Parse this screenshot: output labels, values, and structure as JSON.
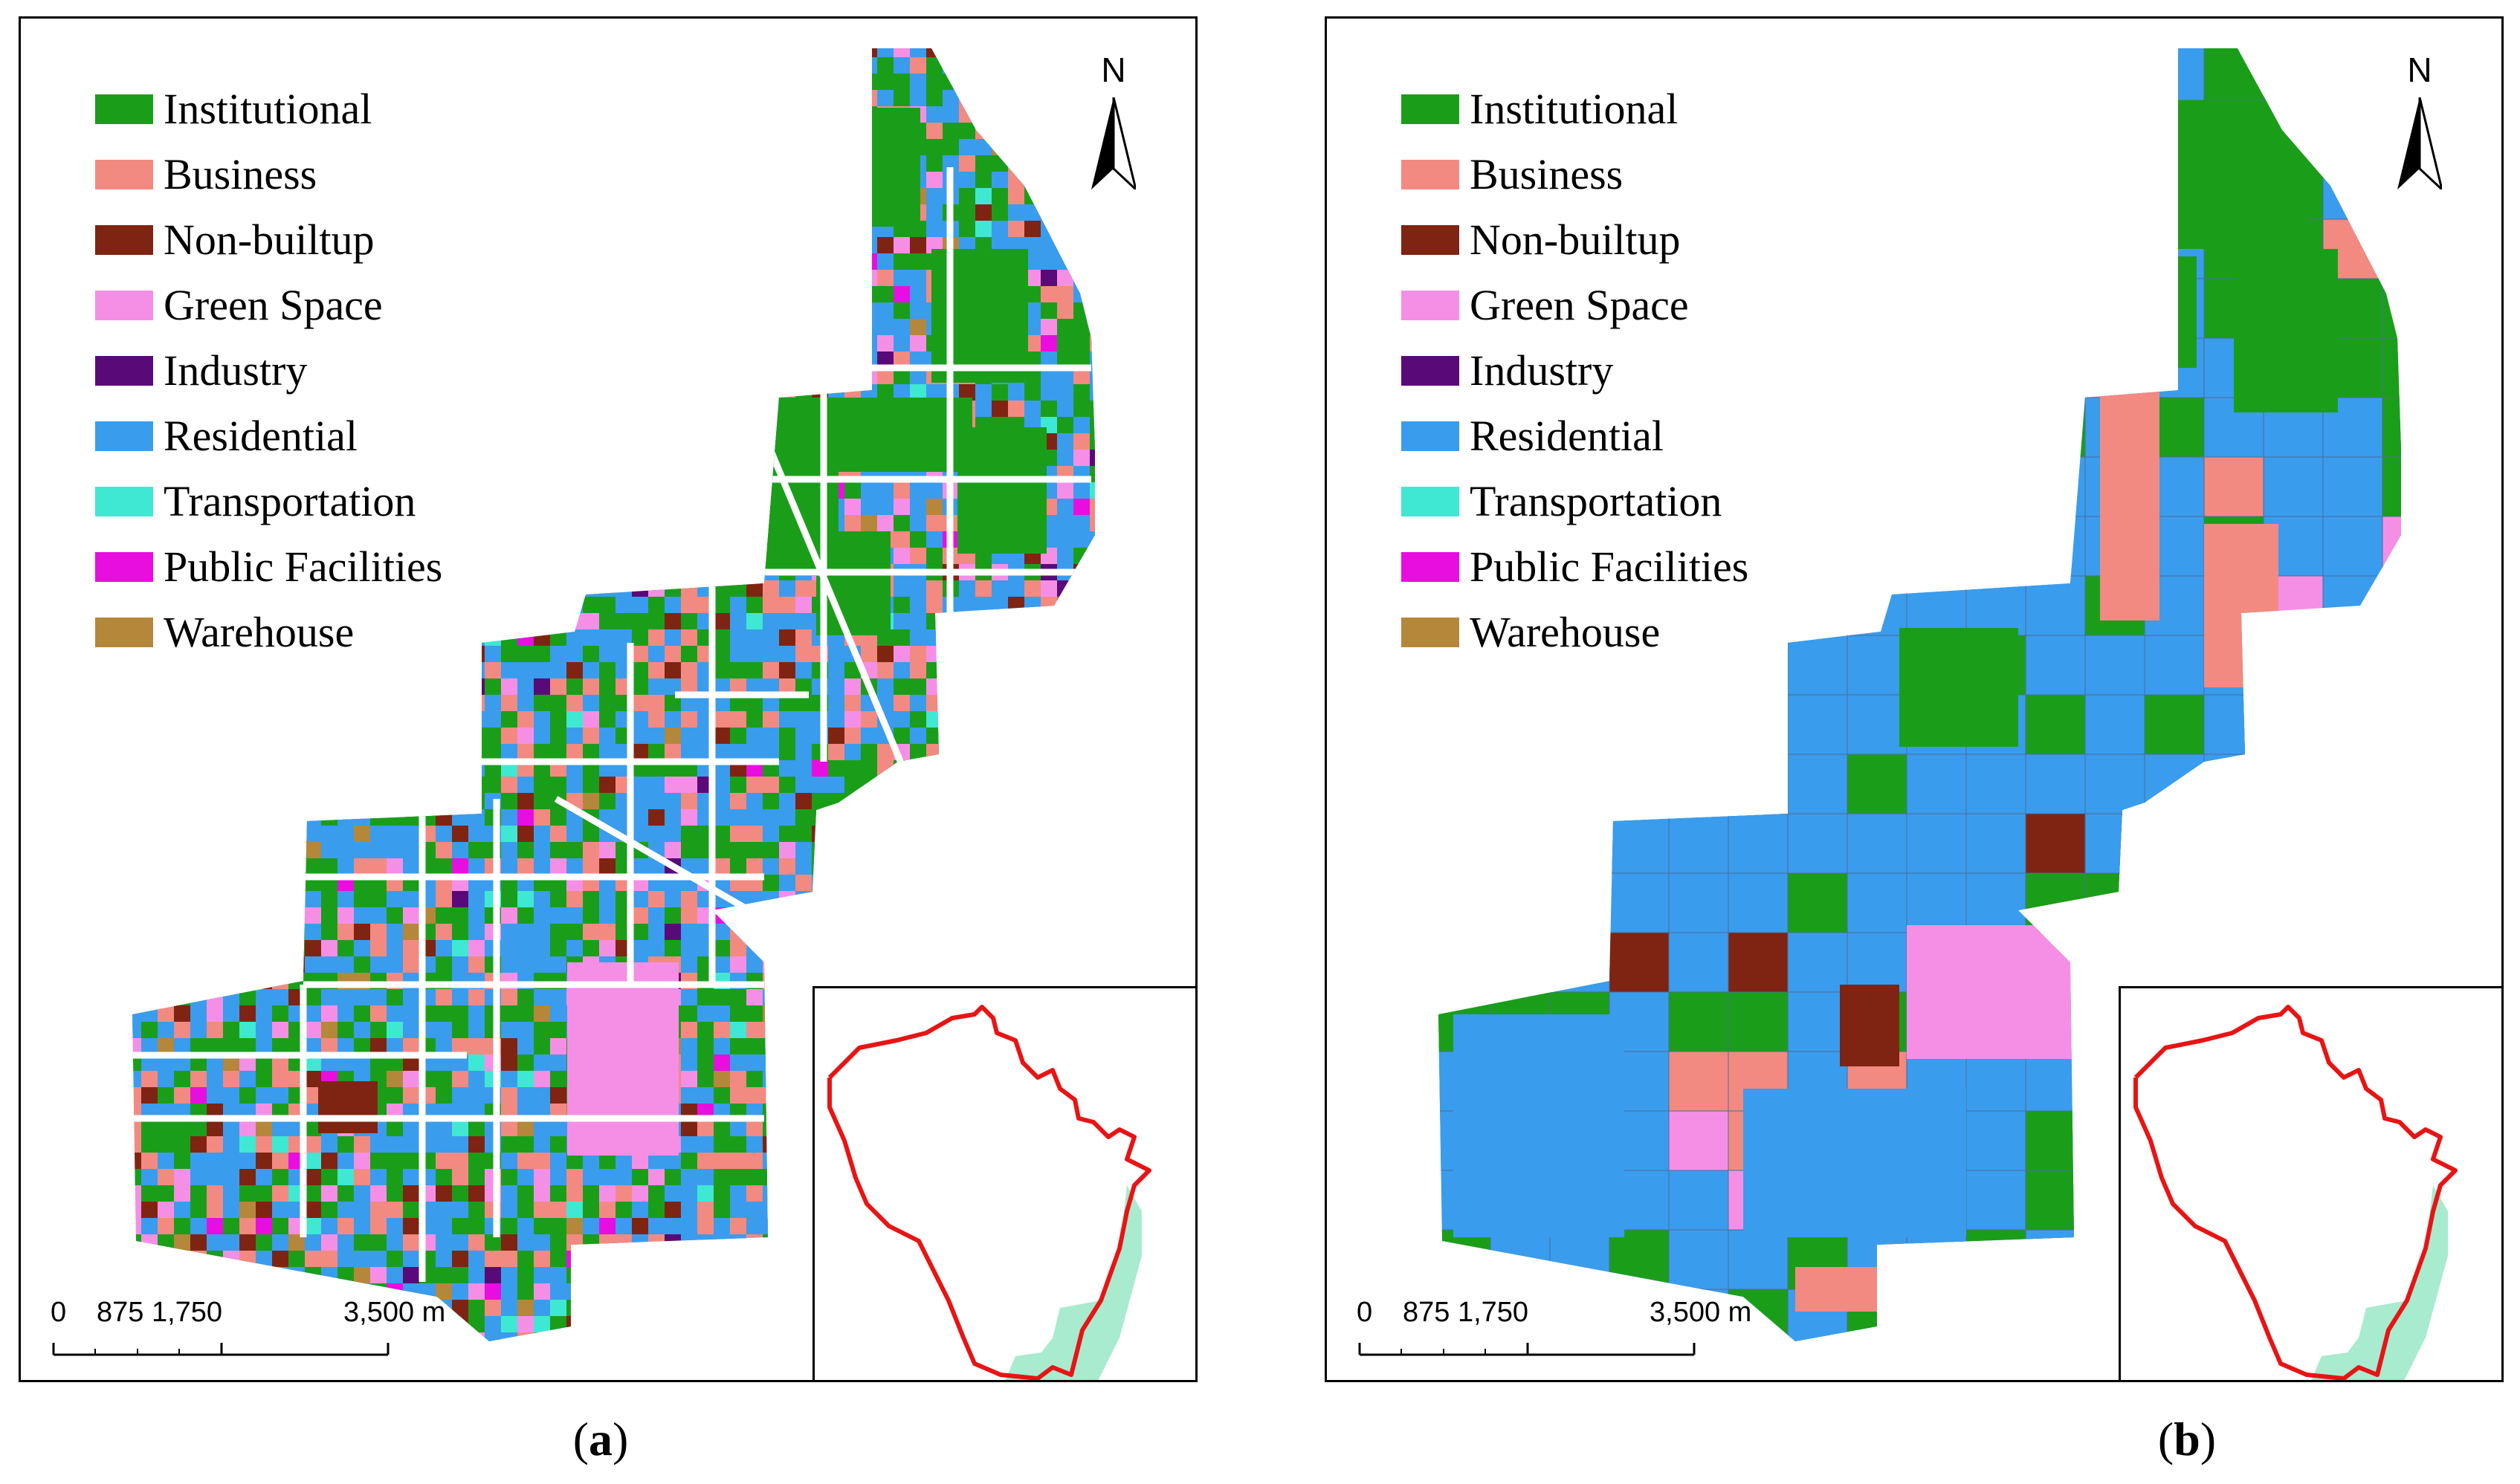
{
  "colors": {
    "Institutional": "#1a9e1a",
    "Business": "#f28a82",
    "Non-builtup": "#7f2412",
    "Green Space": "#f58fe6",
    "Industry": "#5a0a78",
    "Residential": "#3a9ced",
    "Transportation": "#3fe8d2",
    "Public Facilities": "#e80ee0",
    "Warehouse": "#b5873a",
    "road": "#ffffff",
    "boundary": "#e81414",
    "highlight": "#a8ebcf"
  },
  "legend": [
    {
      "label": "Institutional",
      "color": "#1a9e1a"
    },
    {
      "label": "Business",
      "color": "#f28a82"
    },
    {
      "label": "Non-builtup",
      "color": "#7f2412"
    },
    {
      "label": "Green Space",
      "color": "#f58fe6"
    },
    {
      "label": "Industry",
      "color": "#5a0a78"
    },
    {
      "label": "Residential",
      "color": "#3a9ced"
    },
    {
      "label": "Transportation",
      "color": "#3fe8d2"
    },
    {
      "label": "Public Facilities",
      "color": "#e80ee0"
    },
    {
      "label": "Warehouse",
      "color": "#b5873a"
    }
  ],
  "north_label": "N",
  "scale_bar": {
    "ticks": [
      "0",
      "875 1,750",
      "3,500 m"
    ],
    "icon": "scale-bar-icon"
  },
  "panels": [
    {
      "id": "a",
      "caption_open": "(",
      "caption_letter": "a",
      "caption_close": ")"
    },
    {
      "id": "b",
      "caption_open": "(",
      "caption_letter": "b",
      "caption_close": ")"
    }
  ],
  "icons": [
    "north-arrow-icon",
    "scale-bar-icon",
    "locator-inset-icon"
  ]
}
